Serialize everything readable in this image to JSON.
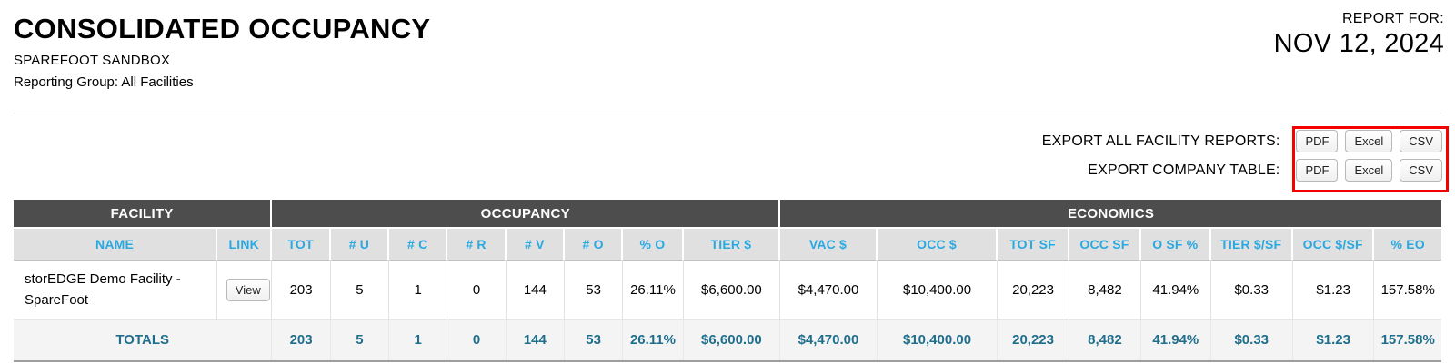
{
  "page": {
    "title": "CONSOLIDATED OCCUPANCY",
    "subtitle": "SPAREFOOT SANDBOX",
    "reporting_group": "Reporting Group: All Facilities",
    "report_for_label": "REPORT FOR:",
    "report_date": "NOV 12, 2024"
  },
  "export": {
    "rows": [
      {
        "label": "EXPORT ALL FACILITY REPORTS:",
        "buttons": [
          "PDF",
          "Excel",
          "CSV"
        ]
      },
      {
        "label": "EXPORT COMPANY TABLE:",
        "buttons": [
          "PDF",
          "Excel",
          "CSV"
        ]
      }
    ],
    "highlight_color": "#f40000"
  },
  "table": {
    "groups": [
      {
        "label": "FACILITY",
        "span": 2
      },
      {
        "label": "OCCUPANCY",
        "span": 8
      },
      {
        "label": "ECONOMICS",
        "span": 8
      }
    ],
    "columns": [
      "NAME",
      "LINK",
      "TOT",
      "# U",
      "# C",
      "# R",
      "# V",
      "# O",
      "% O",
      "TIER $",
      "VAC $",
      "OCC $",
      "TOT SF",
      "OCC SF",
      "O SF %",
      "TIER $/SF",
      "OCC $/SF",
      "% EO"
    ],
    "rows": [
      {
        "name": "storEDGE Demo Facility - SpareFoot",
        "link_label": "View",
        "values": [
          "203",
          "5",
          "1",
          "0",
          "144",
          "53",
          "26.11%",
          "$6,600.00",
          "$4,470.00",
          "$10,400.00",
          "20,223",
          "8,482",
          "41.94%",
          "$0.33",
          "$1.23",
          "157.58%"
        ]
      }
    ],
    "totals": {
      "label": "TOTALS",
      "values": [
        "203",
        "5",
        "1",
        "0",
        "144",
        "53",
        "26.11%",
        "$6,600.00",
        "$4,470.00",
        "$10,400.00",
        "20,223",
        "8,482",
        "41.94%",
        "$0.33",
        "$1.23",
        "157.58%"
      ]
    }
  },
  "colors": {
    "accent_blue": "#29a9e0",
    "totals_teal": "#1f6e8c",
    "header_dark": "#4d4d4d",
    "subheader_bg": "#e0e0e0",
    "totals_bg": "#f4f4f4"
  }
}
